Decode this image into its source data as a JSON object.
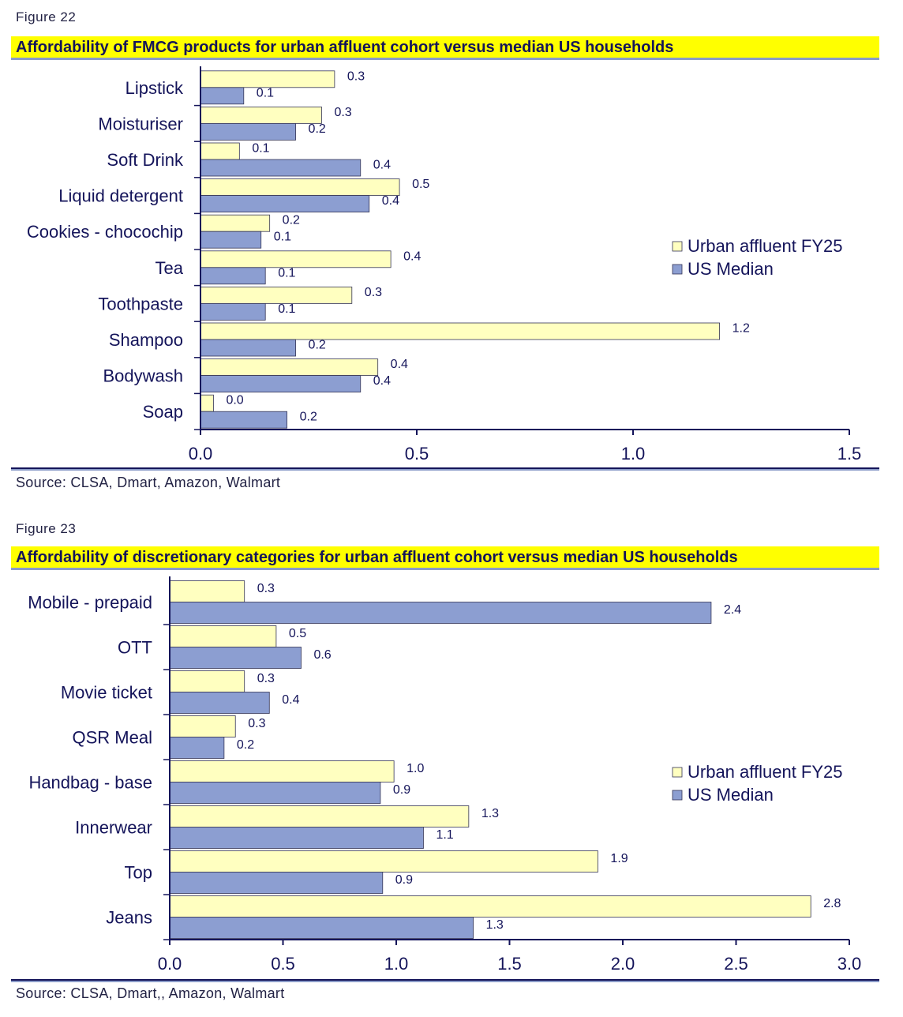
{
  "figures": [
    {
      "fig_label": "Figure 22",
      "title": "Affordability of FMCG products for urban affluent cohort versus median US households",
      "source": "Source: CLSA, Dmart, Amazon, Walmart"
    },
    {
      "fig_label": "Figure 23",
      "title": "Affordability of discretionary categories for urban affluent cohort versus median US households",
      "source": "Source: CLSA, Dmart,, Amazon, Walmart"
    }
  ],
  "chart_data": [
    {
      "type": "bar",
      "orientation": "horizontal",
      "categories": [
        "Lipstick",
        "Moisturiser",
        "Soft Drink",
        "Liquid detergent",
        "Cookies - chocochip",
        "Tea",
        "Toothpaste",
        "Shampoo",
        "Bodywash",
        "Soap"
      ],
      "series": [
        {
          "name": "Urban affluent FY25",
          "color": "#ffffc0",
          "values": [
            0.31,
            0.28,
            0.09,
            0.46,
            0.16,
            0.44,
            0.35,
            1.2,
            0.41,
            0.03
          ],
          "labels": [
            "0.3",
            "0.3",
            "0.1",
            "0.5",
            "0.2",
            "0.4",
            "0.3",
            "1.2",
            "0.4",
            "0.0"
          ]
        },
        {
          "name": "US Median",
          "color": "#8c9ed1",
          "values": [
            0.1,
            0.22,
            0.37,
            0.39,
            0.14,
            0.15,
            0.15,
            0.22,
            0.37,
            0.2
          ],
          "labels": [
            "0.1",
            "0.2",
            "0.4",
            "0.4",
            "0.1",
            "0.1",
            "0.1",
            "0.2",
            "0.4",
            "0.2"
          ]
        }
      ],
      "xlim": [
        0,
        1.5
      ],
      "ticks": [
        "0.0",
        "0.5",
        "1.0",
        "1.5"
      ],
      "tick_values": [
        0,
        0.5,
        1.0,
        1.5
      ],
      "legend": "right-middle"
    },
    {
      "type": "bar",
      "orientation": "horizontal",
      "categories": [
        "Mobile - prepaid",
        "OTT",
        "Movie ticket",
        "QSR Meal",
        "Handbag - base",
        "Innerwear",
        "Top",
        "Jeans"
      ],
      "series": [
        {
          "name": "Urban affluent FY25",
          "color": "#ffffc0",
          "values": [
            0.33,
            0.47,
            0.33,
            0.29,
            0.99,
            1.32,
            1.89,
            2.83
          ],
          "labels": [
            "0.3",
            "0.5",
            "0.3",
            "0.3",
            "1.0",
            "1.3",
            "1.9",
            "2.8"
          ]
        },
        {
          "name": "US Median",
          "color": "#8c9ed1",
          "values": [
            2.39,
            0.58,
            0.44,
            0.24,
            0.93,
            1.12,
            0.94,
            1.34
          ],
          "labels": [
            "2.4",
            "0.6",
            "0.4",
            "0.2",
            "0.9",
            "1.1",
            "0.9",
            "1.3"
          ]
        }
      ],
      "xlim": [
        0,
        3.0
      ],
      "ticks": [
        "0.0",
        "0.5",
        "1.0",
        "1.5",
        "2.0",
        "2.5",
        "3.0"
      ],
      "tick_values": [
        0,
        0.5,
        1.0,
        1.5,
        2.0,
        2.5,
        3.0
      ],
      "legend": "right-middle"
    }
  ]
}
